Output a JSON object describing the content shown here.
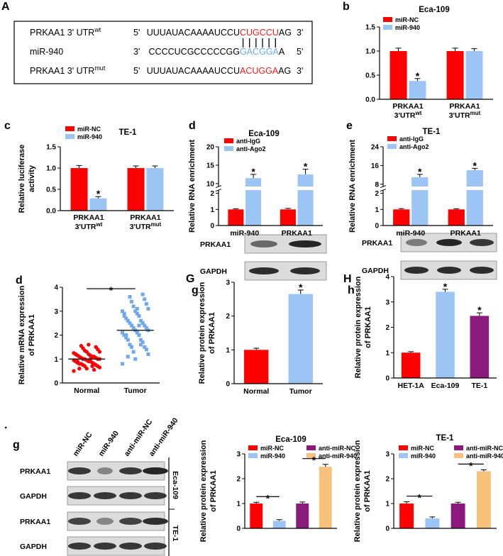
{
  "sequence_panel": {
    "label": "A",
    "rows": [
      {
        "name": "PRKAA1 3' UTR",
        "sup": "wt",
        "left": "5'",
        "seq": "UUUAUACAAAAUCCU",
        "site": "CUGCCU",
        "tail": "AG",
        "right": "3'"
      },
      {
        "name": "miR-940",
        "left": "3'",
        "seq": "CCCCUCGCCCCCGG",
        "site": "GACGGA",
        "tail": "A",
        "right": "5'"
      },
      {
        "name": "PRKAA1 3' UTR",
        "sup": "mut",
        "left": "5'",
        "seq": "UUUAUACAAAAUCCU",
        "site": "ACUGGA",
        "tail": "AG",
        "right": "3'"
      }
    ]
  },
  "blots": [
    {
      "panel": "G",
      "rows": [
        "PRKAA1",
        "GAPDH"
      ]
    },
    {
      "panel": "H",
      "rows": [
        "PRKAA1",
        "GAPDH"
      ]
    },
    {
      "panel": "g",
      "marker": ".",
      "columns": [
        "miR-NC",
        "miR-940",
        "anti-miR-NC",
        "anti-miR-940"
      ],
      "rows": [
        "PRKAA1",
        "GAPDH",
        "PRKAA1",
        "GAPDH"
      ],
      "groups": [
        "Eca-109",
        "TE-1"
      ]
    }
  ],
  "chart_data": [
    {
      "type": "bar",
      "panel": "b",
      "title": "Eca-109",
      "categories": [
        {
          "name": "PRKAA1",
          "line2": "3'UTR",
          "sup": "wt"
        },
        {
          "name": "PRKAA1",
          "line2": "3'UTR",
          "sup": "mut"
        }
      ],
      "series": [
        {
          "name": "miR-NC",
          "color": "#ff0000",
          "values": [
            1.0,
            1.0
          ],
          "errors": [
            0.06,
            0.06
          ]
        },
        {
          "name": "miR-940",
          "color": "#9cc5f5",
          "values": [
            0.38,
            1.0
          ],
          "errors": [
            0.05,
            0.05
          ],
          "significance": [
            "*",
            null
          ]
        }
      ],
      "ylim": [
        0,
        1.5
      ],
      "yticks": [
        {
          "value": 0,
          "label": "0.0"
        },
        {
          "value": 0.5,
          "label": "0.5"
        },
        {
          "value": 1,
          "label": "1.0"
        },
        {
          "value": 1.5,
          "label": "1.5"
        }
      ]
    },
    {
      "type": "bar",
      "panel": "c",
      "title": "TE-1",
      "ylabel": [
        "Relative luciferase",
        "activity"
      ],
      "categories": [
        {
          "name": "PRKAA1",
          "line2": "3'UTR",
          "sup": "wt"
        },
        {
          "name": "PRKAA1",
          "line2": "3'UTR",
          "sup": "mut"
        }
      ],
      "series": [
        {
          "name": "miR-NC",
          "color": "#ff0000",
          "values": [
            1.0,
            1.0
          ],
          "errors": [
            0.06,
            0.05
          ]
        },
        {
          "name": "miR-940",
          "color": "#9cc5f5",
          "values": [
            0.29,
            1.0
          ],
          "errors": [
            0.04,
            0.05
          ],
          "significance": [
            "*",
            null
          ]
        }
      ],
      "ylim": [
        0,
        1.5
      ],
      "yticks": [
        {
          "value": 0,
          "label": "0.0"
        },
        {
          "value": 0.5,
          "label": "0.5"
        },
        {
          "value": 1,
          "label": "1.0"
        },
        {
          "value": 1.5,
          "label": "1.5"
        }
      ]
    },
    {
      "type": "broken-bar",
      "panel": "d",
      "title": "Eca-109",
      "ylabel": "Relative RNA enrichment",
      "categories": [
        "miR-940",
        "PRKAA1"
      ],
      "series": [
        {
          "name": "anti-IgG",
          "color": "#ff0000",
          "values": [
            1.0,
            1.0
          ],
          "errors": [
            0.04,
            0.06
          ]
        },
        {
          "name": "anti-Ago2",
          "color": "#9cc5f5",
          "values": [
            11.5,
            12.5
          ],
          "errors": [
            1.0,
            1.4
          ],
          "significance": [
            "*",
            "*"
          ]
        }
      ],
      "ylims": [
        [
          0,
          2.2
        ],
        [
          9.2,
          20
        ]
      ],
      "yticks": [
        [
          0,
          1,
          2
        ],
        [
          10,
          15,
          20
        ]
      ]
    },
    {
      "type": "broken-bar",
      "panel": "e",
      "title": "TE-1",
      "ylabel": "Relative RNA enrichment",
      "categories": [
        "miR-940",
        "PRKAA1"
      ],
      "series": [
        {
          "name": "anti-IgG",
          "color": "#ff0000",
          "values": [
            1.0,
            1.0
          ],
          "errors": [
            0.05,
            0.04
          ]
        },
        {
          "name": "anti-Ago2",
          "color": "#9cc5f5",
          "values": [
            11,
            14
          ],
          "errors": [
            1.2,
            0.8
          ],
          "significance": [
            "*",
            "*"
          ]
        }
      ],
      "ylims": [
        [
          0,
          2.2
        ],
        [
          7,
          24
        ]
      ],
      "yticks": [
        [
          0,
          1,
          2
        ],
        [
          8,
          16,
          24
        ]
      ]
    },
    {
      "type": "dot",
      "panel": "d",
      "ylabel": [
        "Relative mRNA expression",
        "of PRKAA1"
      ],
      "categories": [
        "Normal",
        "Tumor"
      ],
      "groups": [
        {
          "color": "#ff0000",
          "marker": "circle",
          "values": [
            0.5,
            0.6,
            0.65,
            0.7,
            0.7,
            0.75,
            0.75,
            0.8,
            0.8,
            0.8,
            0.85,
            0.85,
            0.9,
            0.9,
            0.9,
            0.95,
            0.95,
            1.0,
            1.0,
            1.0,
            1.0,
            1.05,
            1.05,
            1.1,
            1.1,
            1.1,
            1.15,
            1.15,
            1.2,
            1.2,
            1.25,
            1.3,
            1.3,
            1.35,
            1.4,
            1.45,
            1.5,
            1.55,
            0.55,
            0.6,
            0.7,
            0.9,
            1.0,
            1.2,
            1.6
          ]
        },
        {
          "color": "#6fa8ec",
          "marker": "square",
          "values": [
            0.8,
            1.0,
            1.2,
            1.3,
            1.4,
            1.5,
            1.5,
            1.6,
            1.7,
            1.8,
            1.8,
            1.9,
            2.0,
            2.0,
            2.1,
            2.1,
            2.2,
            2.2,
            2.3,
            2.3,
            2.4,
            2.4,
            2.5,
            2.5,
            2.6,
            2.6,
            2.7,
            2.8,
            2.8,
            2.9,
            3.0,
            3.0,
            3.1,
            3.2,
            3.3,
            3.4,
            3.5,
            3.6,
            3.7,
            1.1,
            1.6,
            2.0,
            2.4,
            2.9,
            3.1
          ]
        }
      ],
      "means": [
        1.0,
        2.2
      ],
      "bracket_labels": [
        "*"
      ],
      "ylim": [
        0,
        4
      ],
      "yticks": [
        0,
        1,
        2,
        3,
        4
      ]
    },
    {
      "type": "bar",
      "panel": "g",
      "ylabel": [
        "Relative protein expression",
        "of PRKAA1"
      ],
      "categories": [
        "Normal",
        "Tumor"
      ],
      "values": [
        1.0,
        2.65
      ],
      "errors": [
        0.05,
        0.12
      ],
      "colors": [
        "#ff0000",
        "#9cc5f5"
      ],
      "significance": [
        null,
        "*"
      ],
      "ylim": [
        0,
        3
      ],
      "yticks": [
        0,
        1,
        2,
        3
      ]
    },
    {
      "type": "bar",
      "panel": "h",
      "ylabel": [
        "Relative protein expression",
        "of PRKAA1"
      ],
      "categories": [
        "HET-1A",
        "Eca-109",
        "TE-1"
      ],
      "values": [
        1.0,
        3.4,
        2.45
      ],
      "errors": [
        0.04,
        0.1,
        0.12
      ],
      "colors": [
        "#ff0000",
        "#9cc5f5",
        "#8b1a7d"
      ],
      "significance": [
        null,
        "*",
        "*"
      ],
      "ylim": [
        0,
        4
      ],
      "yticks": [
        0,
        1,
        2,
        3,
        4
      ]
    },
    {
      "type": "bar",
      "title": "Eca-109",
      "ylabel": [
        "Relative protein expression",
        "of PRKAA1"
      ],
      "legend": true,
      "categories": [
        "miR-NC",
        "miR-940",
        "anti-miR-NC",
        "anti-miR-940"
      ],
      "values": [
        1.0,
        0.3,
        1.0,
        2.48
      ],
      "errors": [
        0.05,
        0.05,
        0.06,
        0.1
      ],
      "colors": [
        "#ff0000",
        "#9cc5f5",
        "#8b1a7d",
        "#f8c27d"
      ],
      "bracket_labels": [
        "*",
        null,
        "*"
      ],
      "ylim": [
        0,
        3
      ],
      "yticks": [
        0,
        1,
        2,
        3
      ]
    },
    {
      "type": "bar",
      "title": "TE-1",
      "ylabel": [
        "Relative protein expression",
        "of PRKAA1"
      ],
      "legend": true,
      "categories": [
        "miR-NC",
        "miR-940",
        "anti-miR-NC",
        "anti-miR-940"
      ],
      "values": [
        1.0,
        0.4,
        1.0,
        2.3
      ],
      "errors": [
        0.07,
        0.06,
        0.05,
        0.06
      ],
      "colors": [
        "#ff0000",
        "#9cc5f5",
        "#8b1a7d",
        "#f8c27d"
      ],
      "bracket_labels": [
        "*",
        null,
        "*"
      ],
      "ylim": [
        0,
        3
      ],
      "yticks": [
        0,
        1,
        2,
        3
      ]
    }
  ]
}
